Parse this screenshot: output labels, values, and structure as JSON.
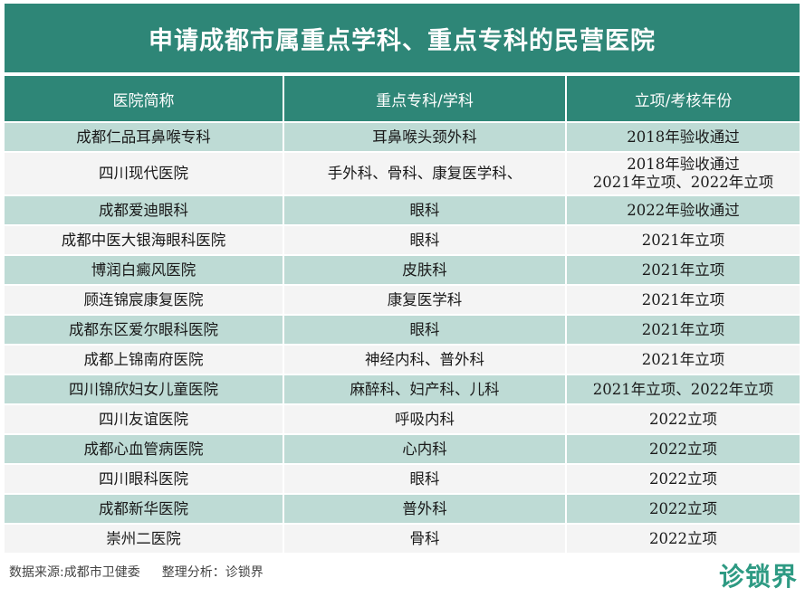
{
  "title": "申请成都市属重点学科、重点专科的民营医院",
  "table": {
    "headers": [
      "医院简称",
      "重点专科/学科",
      "立项/考核年份"
    ],
    "rows": [
      {
        "hospital": "成都仁品耳鼻喉专科",
        "specialty": "耳鼻喉头颈外科",
        "year": [
          "2018年验收通过"
        ]
      },
      {
        "hospital": "四川现代医院",
        "specialty": "手外科、骨科、康复医学科、",
        "year": [
          "2018年验收通过",
          "2021年立项、2022年立项"
        ]
      },
      {
        "hospital": "成都爱迪眼科",
        "specialty": "眼科",
        "year": [
          "2022年验收通过"
        ]
      },
      {
        "hospital": "成都中医大银海眼科医院",
        "specialty": "眼科",
        "year": [
          "2021年立项"
        ]
      },
      {
        "hospital": "博润白癜风医院",
        "specialty": "皮肤科",
        "year": [
          "2021年立项"
        ]
      },
      {
        "hospital": "顾连锦宸康复医院",
        "specialty": "康复医学科",
        "year": [
          "2021年立项"
        ]
      },
      {
        "hospital": "成都东区爱尔眼科医院",
        "specialty": "眼科",
        "year": [
          "2021年立项"
        ]
      },
      {
        "hospital": "成都上锦南府医院",
        "specialty": "神经内科、普外科",
        "year": [
          "2021年立项"
        ]
      },
      {
        "hospital": "四川锦欣妇女儿童医院",
        "specialty": "麻醉科、妇产科、儿科",
        "year": [
          "2021年立项、2022年立项"
        ]
      },
      {
        "hospital": "四川友谊医院",
        "specialty": "呼吸内科",
        "year": [
          "2022立项"
        ]
      },
      {
        "hospital": "成都心血管病医院",
        "specialty": "心内科",
        "year": [
          "2022立项"
        ]
      },
      {
        "hospital": "四川眼科医院",
        "specialty": "眼科",
        "year": [
          "2022立项"
        ]
      },
      {
        "hospital": "成都新华医院",
        "specialty": "普外科",
        "year": [
          "2022立项"
        ]
      },
      {
        "hospital": "崇州二医院",
        "specialty": "骨科",
        "year": [
          "2022立项"
        ]
      }
    ]
  },
  "footer": {
    "source": "数据来源:成都市卫健委",
    "analysis": "整理分析：诊锁界"
  },
  "logo_text": "诊锁界",
  "colors": {
    "header_bg": "#2e8677",
    "row_odd": "#bedbd5",
    "row_even": "#f4f4f4",
    "logo": "#2e9a83"
  }
}
